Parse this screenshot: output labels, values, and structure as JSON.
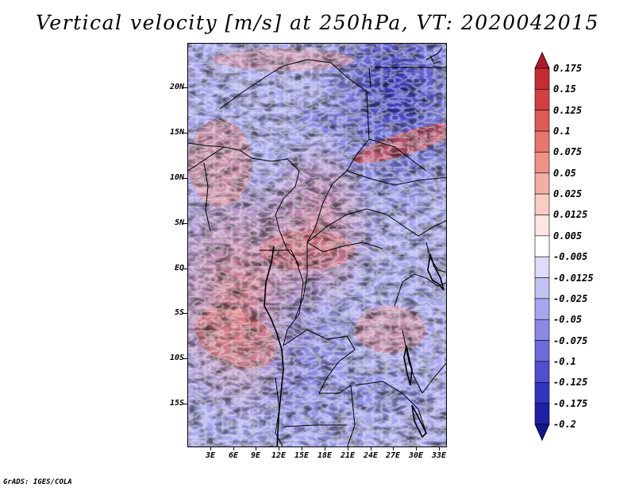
{
  "title": "Vertical velocity [m/s] at 250hPa, VT: 2020042015",
  "footer": "GrADS: IGES/COLA",
  "map": {
    "lon_range": [
      0,
      34
    ],
    "lat_range": [
      -20,
      24
    ],
    "lat_ticks": [
      {
        "value": 20,
        "label": "20N"
      },
      {
        "value": 15,
        "label": "15N"
      },
      {
        "value": 10,
        "label": "10N"
      },
      {
        "value": 5,
        "label": "5N"
      },
      {
        "value": 0,
        "label": "EQ"
      },
      {
        "value": -5,
        "label": "5S"
      },
      {
        "value": -10,
        "label": "10S"
      },
      {
        "value": -15,
        "label": "15S"
      }
    ],
    "lon_ticks": [
      {
        "value": 3,
        "label": "3E"
      },
      {
        "value": 6,
        "label": "6E"
      },
      {
        "value": 9,
        "label": "9E"
      },
      {
        "value": 12,
        "label": "12E"
      },
      {
        "value": 15,
        "label": "15E"
      },
      {
        "value": 18,
        "label": "18E"
      },
      {
        "value": 21,
        "label": "21E"
      },
      {
        "value": 24,
        "label": "24E"
      },
      {
        "value": 27,
        "label": "27E"
      },
      {
        "value": 30,
        "label": "30E"
      },
      {
        "value": 33,
        "label": "33E"
      }
    ]
  },
  "colorbar": {
    "levels": [
      "0.175",
      "0.15",
      "0.125",
      "0.1",
      "0.075",
      "0.05",
      "0.025",
      "0.0125",
      "0.005",
      "-0.005",
      "-0.0125",
      "-0.025",
      "-0.05",
      "-0.075",
      "-0.1",
      "-0.125",
      "-0.175",
      "-0.2"
    ],
    "colors": [
      "#b2182b",
      "#c62b35",
      "#d33f41",
      "#de5a55",
      "#e7766d",
      "#ee9288",
      "#f4aea4",
      "#f9cdc4",
      "#fce6e1",
      "#ffffff",
      "#dcdcfa",
      "#c2c2f3",
      "#a6a6ee",
      "#8a8ae6",
      "#6c6cdc",
      "#4f4fd0",
      "#3333c0",
      "#1f1fa6",
      "#14148a"
    ]
  },
  "colors": {
    "negative_strong": "#3838c8",
    "negative_mid": "#8e8ee8",
    "positive_mid": "#e88a84",
    "positive_strong": "#c83a40",
    "border": "#000000"
  }
}
